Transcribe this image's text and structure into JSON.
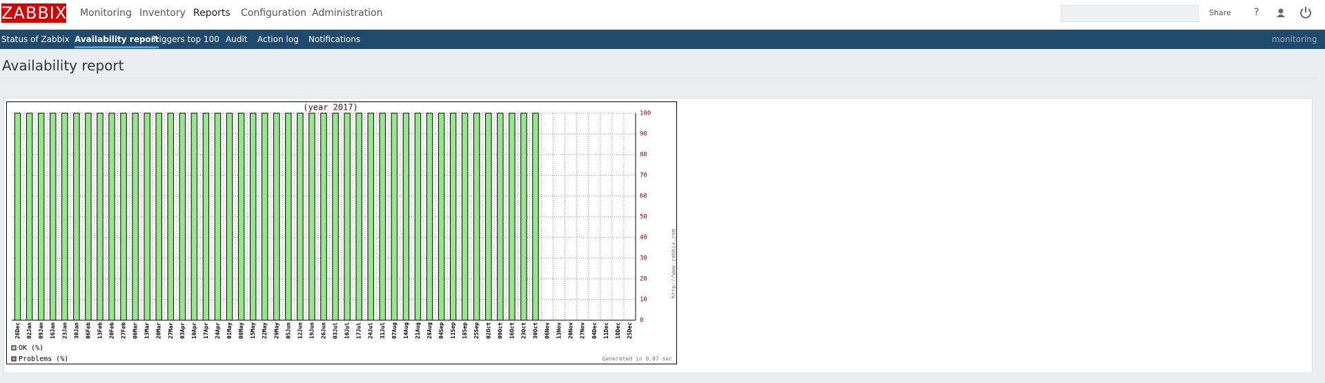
{
  "header": {
    "logo": "ZABBIX",
    "menu": [
      "Monitoring",
      "Inventory",
      "Reports",
      "Configuration",
      "Administration"
    ],
    "share": "Share",
    "help": "?"
  },
  "subnav": {
    "items": [
      "Status of Zabbix",
      "Availability report",
      "Triggers top 100",
      "Audit",
      "Action log",
      "Notifications"
    ],
    "right": "monitoring"
  },
  "page_title": "Availability report",
  "chart_data": {
    "type": "bar",
    "title": "(year 2017)",
    "categories": [
      "26Dec",
      "02Jan",
      "09Jan",
      "16Jan",
      "23Jan",
      "30Jan",
      "06Feb",
      "13Feb",
      "20Feb",
      "27Feb",
      "06Mar",
      "13Mar",
      "20Mar",
      "27Mar",
      "03Apr",
      "10Apr",
      "17Apr",
      "24Apr",
      "01May",
      "08May",
      "15May",
      "22May",
      "29May",
      "05Jun",
      "12Jun",
      "19Jun",
      "26Jun",
      "03Jul",
      "10Jul",
      "17Jul",
      "24Jul",
      "31Jul",
      "07Aug",
      "14Aug",
      "21Aug",
      "28Aug",
      "04Sep",
      "11Sep",
      "18Sep",
      "25Sep",
      "02Oct",
      "09Oct",
      "16Oct",
      "23Oct",
      "30Oct",
      "06Nov",
      "13Nov",
      "20Nov",
      "27Nov",
      "04Dec",
      "11Dec",
      "18Dec",
      "25Dec"
    ],
    "series": [
      {
        "name": "OK (%)",
        "color": "#96e68c",
        "values": [
          100,
          100,
          100,
          100,
          100,
          100,
          100,
          100,
          100,
          100,
          100,
          100,
          100,
          100,
          100,
          100,
          100,
          100,
          100,
          100,
          100,
          100,
          100,
          100,
          100,
          100,
          100,
          100,
          100,
          100,
          100,
          100,
          100,
          100,
          100,
          100,
          100,
          100,
          100,
          100,
          100,
          100,
          100,
          100,
          100,
          null,
          null,
          null,
          null,
          null,
          null,
          null,
          null
        ]
      },
      {
        "name": "Problems (%)",
        "color": "#d98c8c",
        "values": [
          0,
          0,
          0,
          0,
          0,
          0,
          0,
          0,
          0,
          0,
          0,
          0,
          0,
          0,
          0,
          0,
          0,
          0,
          0,
          0,
          0,
          0,
          0,
          0,
          0,
          0,
          0,
          0,
          0,
          0,
          0,
          0,
          0,
          0,
          0,
          0,
          0,
          0,
          0,
          0,
          0,
          0,
          0,
          0,
          0,
          null,
          null,
          null,
          null,
          null,
          null,
          null,
          null
        ]
      }
    ],
    "ylim": [
      0,
      100
    ],
    "yticks": [
      0,
      10,
      20,
      30,
      40,
      50,
      60,
      70,
      80,
      90,
      100
    ],
    "grid": true,
    "annotations": [
      "http://www.zabbix.com",
      "Generated in 0.07 sec"
    ]
  }
}
